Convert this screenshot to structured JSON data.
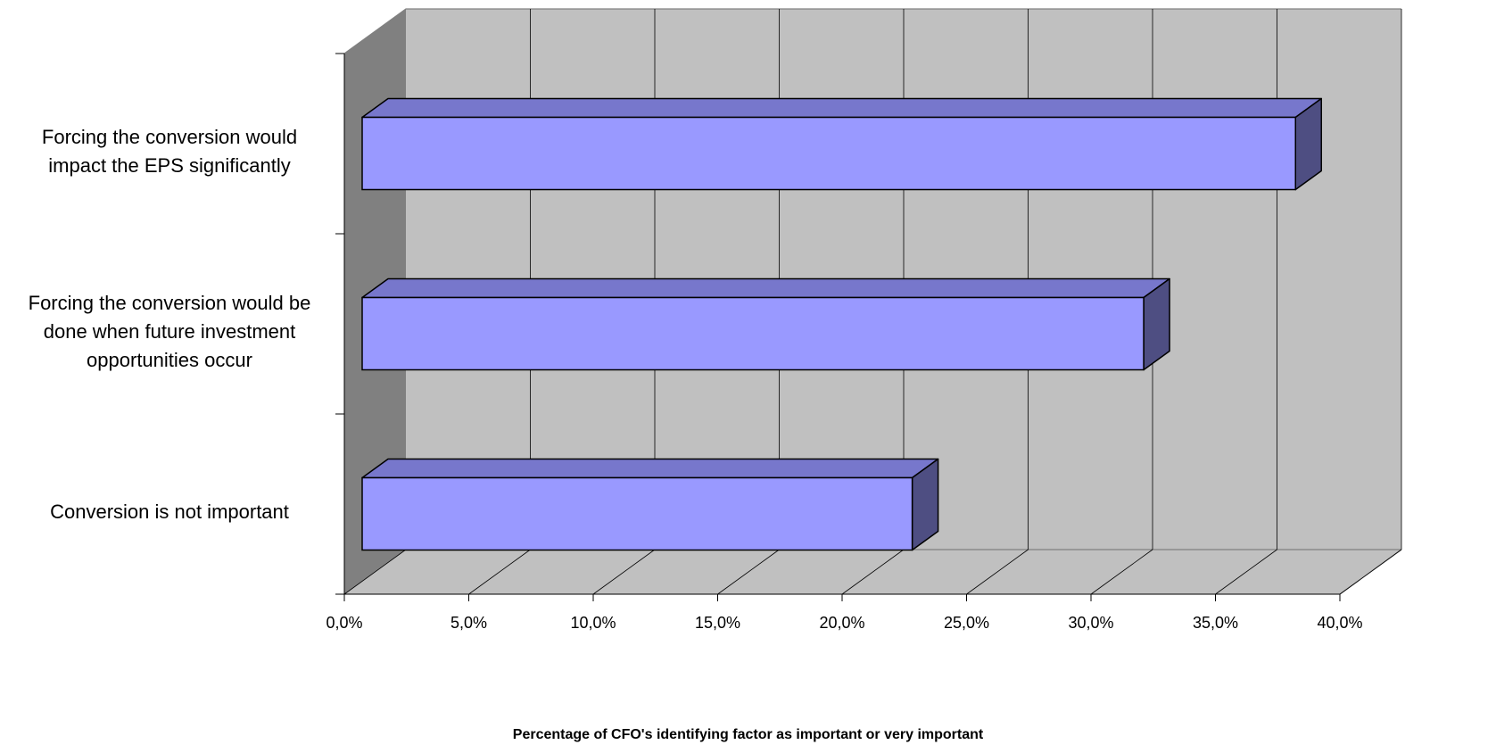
{
  "chart_data": {
    "type": "bar",
    "orientation": "horizontal",
    "style": "3d",
    "categories": [
      "Forcing the conversion would impact the EPS significantly",
      "Forcing the conversion would be done when future investment opportunities occur",
      "Conversion is not important"
    ],
    "category_lines": [
      [
        "Forcing the conversion would",
        "impact the EPS significantly"
      ],
      [
        "Forcing the conversion would be",
        "done when future investment",
        "opportunities occur"
      ],
      [
        "Conversion is not important"
      ]
    ],
    "values": [
      37.5,
      31.4,
      22.1
    ],
    "xlim": [
      0,
      40
    ],
    "xticks": [
      0,
      5,
      10,
      15,
      20,
      25,
      30,
      35,
      40
    ],
    "xtick_labels": [
      "0,0%",
      "5,0%",
      "10,0%",
      "15,0%",
      "20,0%",
      "25,0%",
      "30,0%",
      "35,0%",
      "40,0%"
    ],
    "xlabel": "Percentage of CFO's identifying factor as important or very important",
    "ylabel": "",
    "title": "",
    "grid": true,
    "legend": false,
    "colors": {
      "bar_front": "#9999ff",
      "bar_top": "#7777cc",
      "bar_side": "#4e4e82",
      "back_wall": "#c0c0c0",
      "side_wall": "#808080",
      "floor": "#c0c0c0",
      "grid": "#000000"
    }
  }
}
